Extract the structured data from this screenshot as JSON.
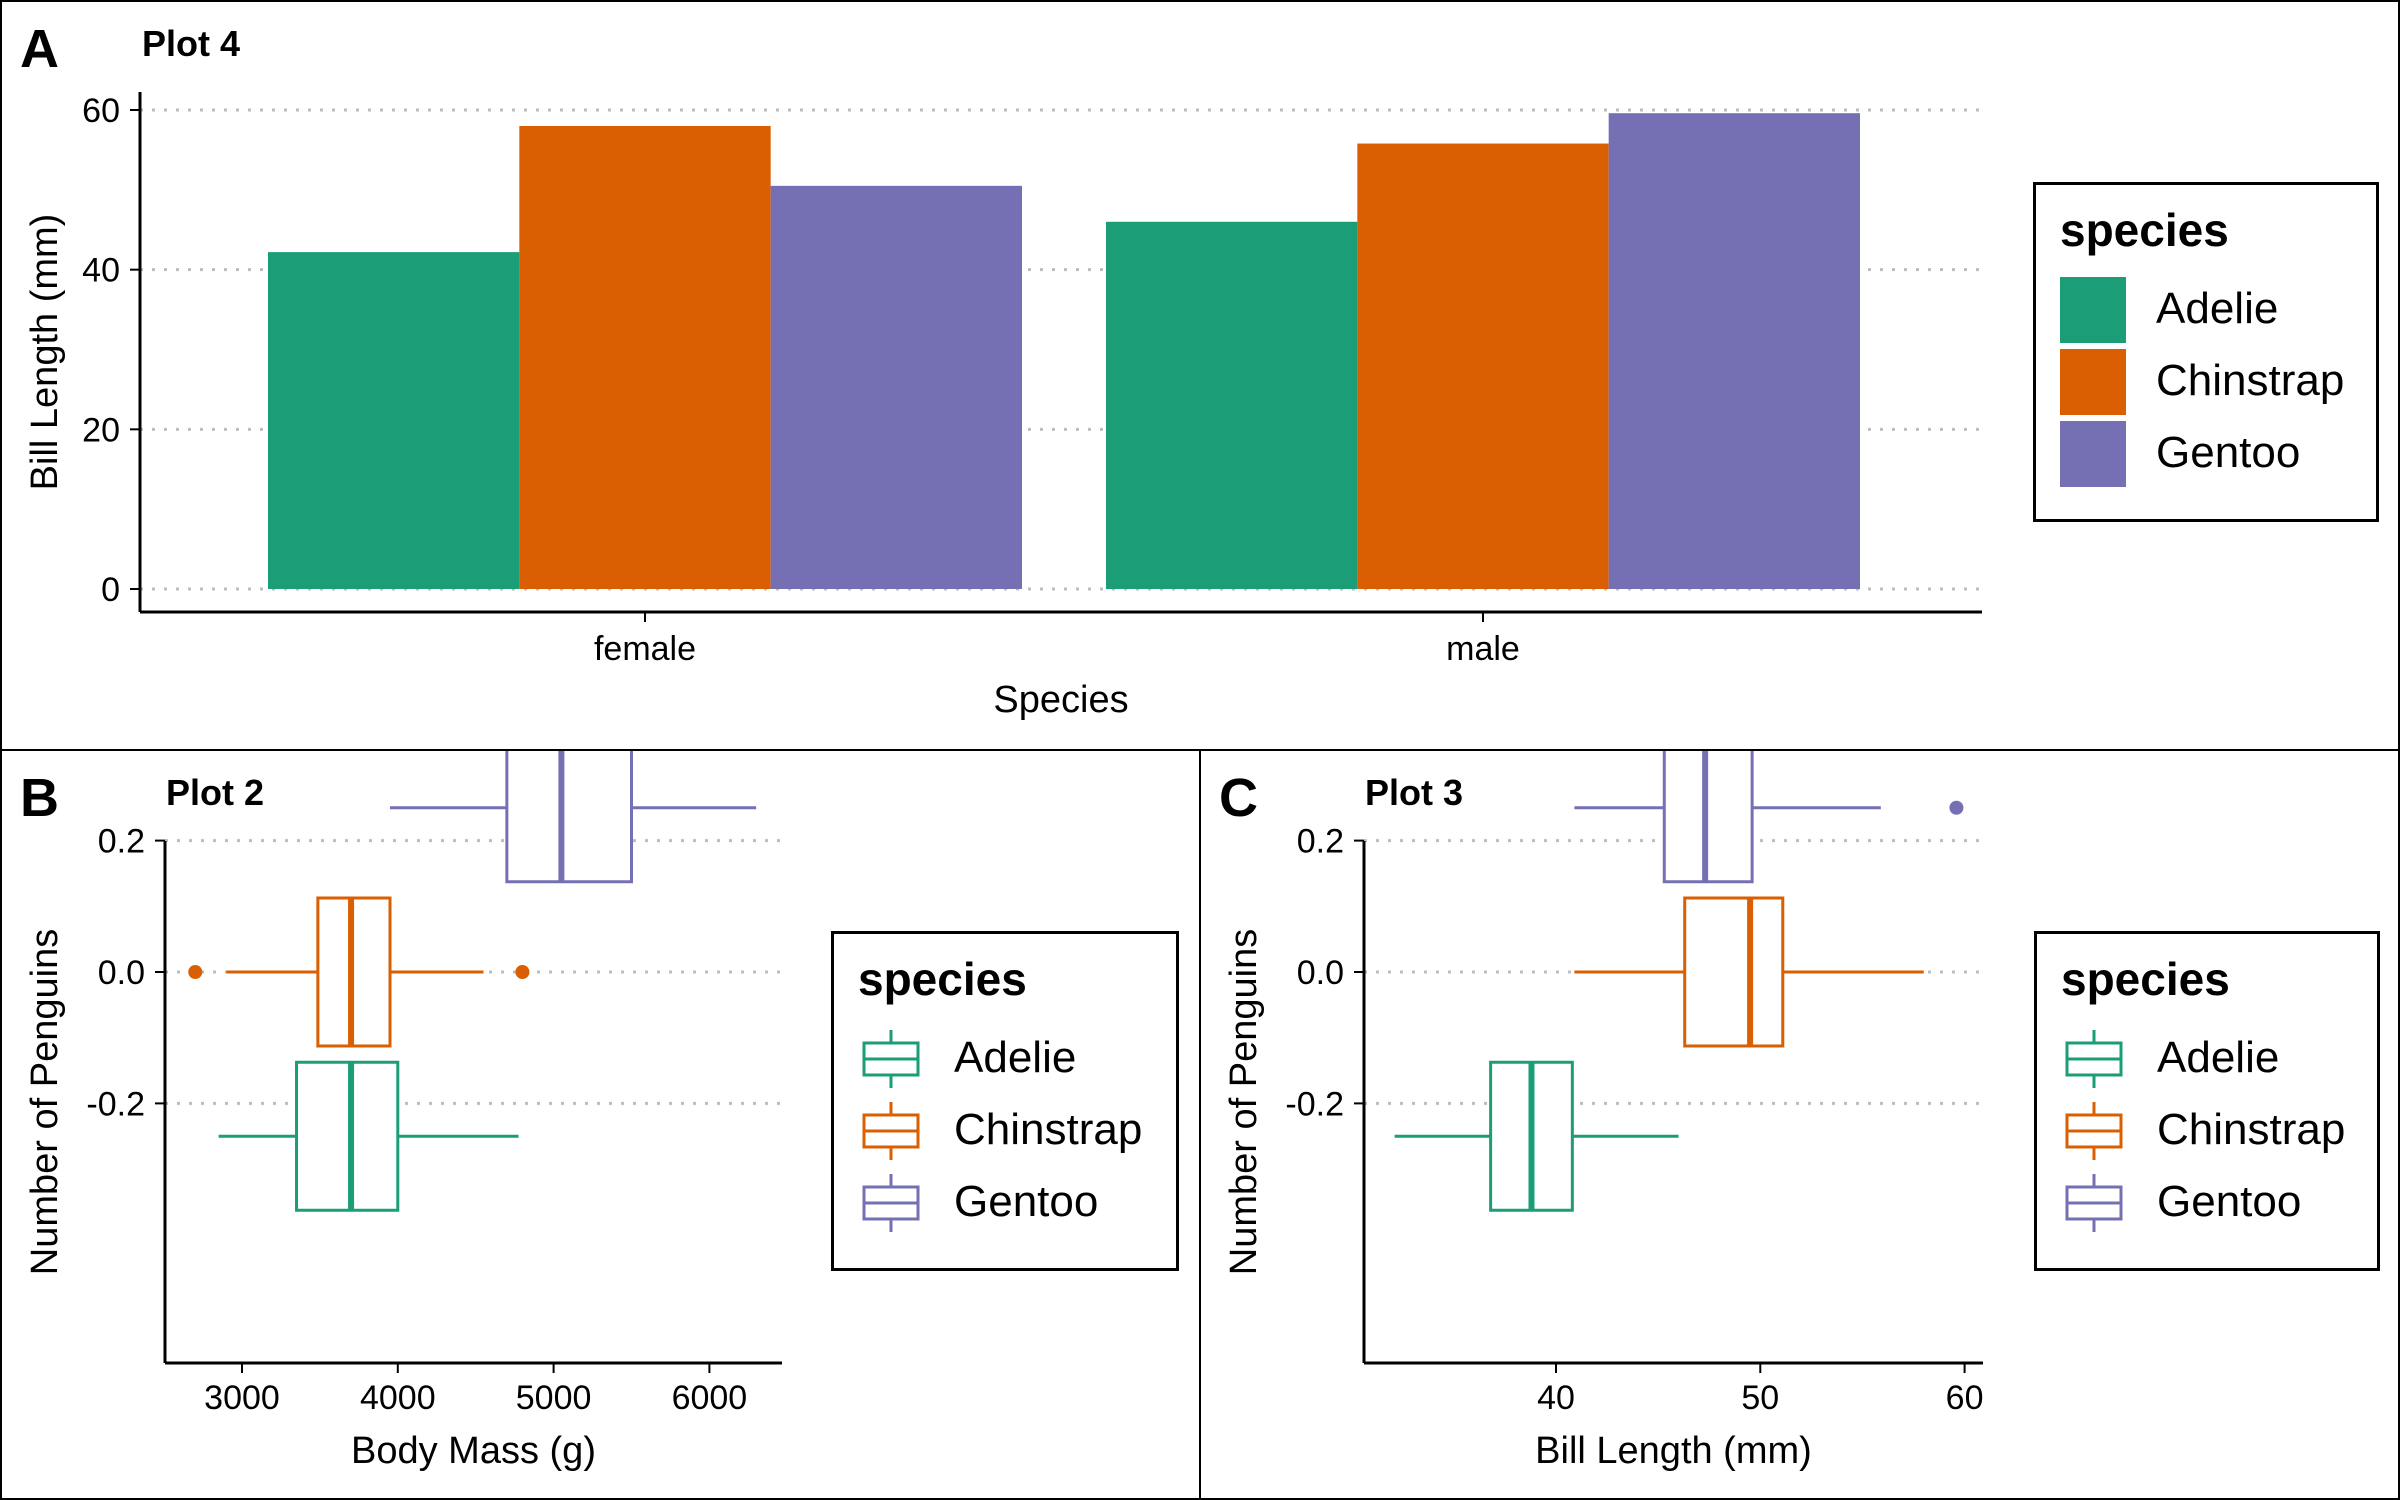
{
  "colors": {
    "Adelie": "#1b9e77",
    "Chinstrap": "#d95f02",
    "Gentoo": "#7570b3",
    "grid": "#bdbdbd",
    "axis": "#000000"
  },
  "panels": {
    "a": {
      "letter": "A",
      "title": "Plot 4"
    },
    "b": {
      "letter": "B",
      "title": "Plot 2"
    },
    "c": {
      "letter": "C",
      "title": "Plot 3"
    }
  },
  "legend": {
    "title": "species",
    "items": [
      {
        "label": "Adelie",
        "color": "#1b9e77"
      },
      {
        "label": "Chinstrap",
        "color": "#d95f02"
      },
      {
        "label": "Gentoo",
        "color": "#7570b3"
      }
    ]
  },
  "chart_data": [
    {
      "type": "bar",
      "title": "Plot 4",
      "xlabel": "Species",
      "ylabel": "Bill Length (mm)",
      "categories": [
        "female",
        "male"
      ],
      "series": [
        {
          "name": "Adelie",
          "values": [
            42.2,
            46.0
          ]
        },
        {
          "name": "Chinstrap",
          "values": [
            58.0,
            55.8
          ]
        },
        {
          "name": "Gentoo",
          "values": [
            50.5,
            59.6
          ]
        }
      ],
      "ylim": [
        0,
        60
      ],
      "yticks": [
        0,
        20,
        40,
        60
      ],
      "grid": "horizontal dotted",
      "legend": "right"
    },
    {
      "type": "boxplot",
      "title": "Plot 2",
      "xlabel": "Body Mass (g)",
      "ylabel": "Number of Penguins",
      "xlim": [
        2700,
        6300
      ],
      "xticks": [
        3000,
        4000,
        5000,
        6000
      ],
      "yticks": [
        -0.2,
        0.0,
        0.2
      ],
      "ytick_labels": [
        "-0.2",
        "0.0",
        "0.2"
      ],
      "boxes": [
        {
          "name": "Adelie",
          "y": -0.25,
          "whisker_low": 2850,
          "q1": 3350,
          "median": 3700,
          "q3": 4000,
          "whisker_high": 4775,
          "outliers": []
        },
        {
          "name": "Chinstrap",
          "y": 0.0,
          "whisker_low": 2900,
          "q1": 3487,
          "median": 3700,
          "q3": 3950,
          "whisker_high": 4550,
          "outliers": [
            2700,
            4800
          ]
        },
        {
          "name": "Gentoo",
          "y": 0.25,
          "whisker_low": 3950,
          "q1": 4700,
          "median": 5050,
          "q3": 5500,
          "whisker_high": 6300,
          "outliers": []
        }
      ],
      "grid": "horizontal dotted",
      "legend": "right"
    },
    {
      "type": "boxplot",
      "title": "Plot 3",
      "xlabel": "Bill Length (mm)",
      "ylabel": "Number of Penguins",
      "xlim": [
        32.1,
        59.6
      ],
      "xticks": [
        40,
        50,
        60
      ],
      "yticks": [
        -0.2,
        0.0,
        0.2
      ],
      "ytick_labels": [
        "-0.2",
        "0.0",
        "0.2"
      ],
      "boxes": [
        {
          "name": "Adelie",
          "y": -0.25,
          "whisker_low": 32.1,
          "q1": 36.8,
          "median": 38.8,
          "q3": 40.8,
          "whisker_high": 46.0,
          "outliers": []
        },
        {
          "name": "Chinstrap",
          "y": 0.0,
          "whisker_low": 40.9,
          "q1": 46.3,
          "median": 49.5,
          "q3": 51.1,
          "whisker_high": 58.0,
          "outliers": []
        },
        {
          "name": "Gentoo",
          "y": 0.25,
          "whisker_low": 40.9,
          "q1": 45.3,
          "median": 47.3,
          "q3": 49.6,
          "whisker_high": 55.9,
          "outliers": [
            59.6
          ]
        }
      ],
      "grid": "horizontal dotted",
      "legend": "right"
    }
  ]
}
